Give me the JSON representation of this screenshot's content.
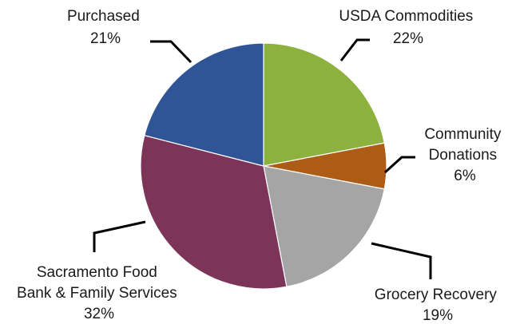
{
  "chart_data": {
    "type": "pie",
    "title": "",
    "start_angle_deg": 0,
    "direction": "clockwise",
    "slices": [
      {
        "name": "USDA Commodities",
        "value": 22,
        "label": "22%",
        "color": "#8db13f"
      },
      {
        "name": "Community Donations",
        "value": 6,
        "label": "6%",
        "color": "#ac5c14"
      },
      {
        "name": "Grocery Recovery",
        "value": 19,
        "label": "19%",
        "color": "#a5a5a5"
      },
      {
        "name": "Sacramento Food Bank & Family Services",
        "value": 32,
        "label": "32%",
        "color": "#7c3459"
      },
      {
        "name": "Purchased",
        "value": 21,
        "label": "21%",
        "color": "#2f5597"
      }
    ],
    "legend": "none",
    "labels": [
      {
        "lines": [
          "USDA Commodities",
          "22%"
        ]
      },
      {
        "lines": [
          "Community",
          "Donations",
          "6%"
        ]
      },
      {
        "lines": [
          "Grocery Recovery",
          "19%"
        ]
      },
      {
        "lines": [
          "Sacramento Food",
          "Bank & Family Services",
          "32%"
        ]
      },
      {
        "lines": [
          "Purchased",
          "21%"
        ]
      }
    ]
  }
}
